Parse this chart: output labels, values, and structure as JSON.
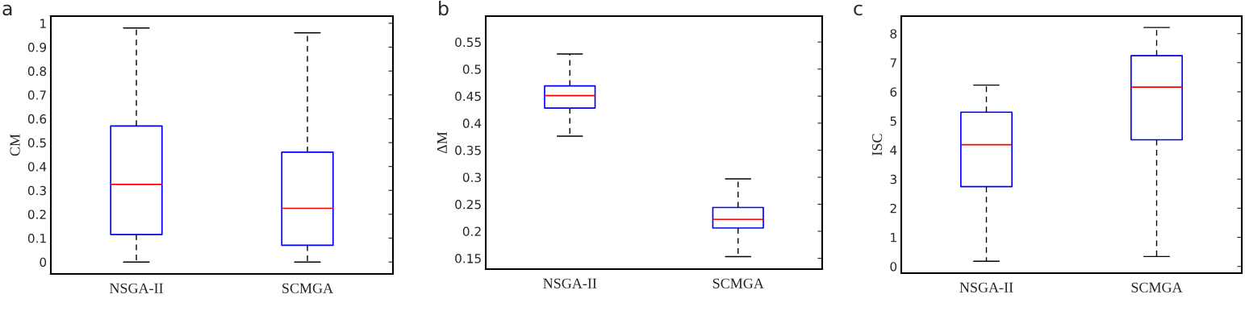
{
  "chart_data": [
    {
      "type": "box",
      "title": "a",
      "ylabel": "CM",
      "categories": [
        "NSGA-II",
        "SCMGA"
      ],
      "ylim": [
        -0.05,
        1.03
      ],
      "yticks": [
        0,
        0.1,
        0.2,
        0.3,
        0.4,
        0.5,
        0.6,
        0.7,
        0.8,
        0.9,
        1
      ],
      "grid": false,
      "legend": false,
      "series": [
        {
          "color": "#0000ff",
          "boxes": [
            {
              "low": 0,
              "q1": 0.115,
              "median": 0.325,
              "q3": 0.57,
              "high": 0.98
            },
            {
              "low": 0,
              "q1": 0.07,
              "median": 0.225,
              "q3": 0.46,
              "high": 0.96
            }
          ]
        }
      ]
    },
    {
      "type": "box",
      "title": "b",
      "ylabel": "ΔM",
      "categories": [
        "NSGA-II",
        "SCMGA"
      ],
      "ylim": [
        0.13,
        0.598
      ],
      "yticks": [
        0.15,
        0.2,
        0.25,
        0.3,
        0.35,
        0.4,
        0.45,
        0.5,
        0.55
      ],
      "grid": false,
      "legend": false,
      "series": [
        {
          "color": "#0000ff",
          "boxes": [
            {
              "low": 0.376,
              "q1": 0.428,
              "median": 0.451,
              "q3": 0.469,
              "high": 0.528
            },
            {
              "low": 0.153,
              "q1": 0.206,
              "median": 0.222,
              "q3": 0.244,
              "high": 0.297
            }
          ]
        }
      ]
    },
    {
      "type": "box",
      "title": "c",
      "ylabel": "ISC",
      "categories": [
        "NSGA-II",
        "SCMGA"
      ],
      "ylim": [
        -0.23,
        8.6
      ],
      "yticks": [
        0,
        1,
        2,
        3,
        4,
        5,
        6,
        7,
        8
      ],
      "grid": false,
      "legend": false,
      "series": [
        {
          "color": "#0000ff",
          "boxes": [
            {
              "low": 0.18,
              "q1": 2.74,
              "median": 4.18,
              "q3": 5.3,
              "high": 6.23
            },
            {
              "low": 0.34,
              "q1": 4.35,
              "median": 6.16,
              "q3": 7.24,
              "high": 8.21
            }
          ]
        }
      ]
    }
  ]
}
